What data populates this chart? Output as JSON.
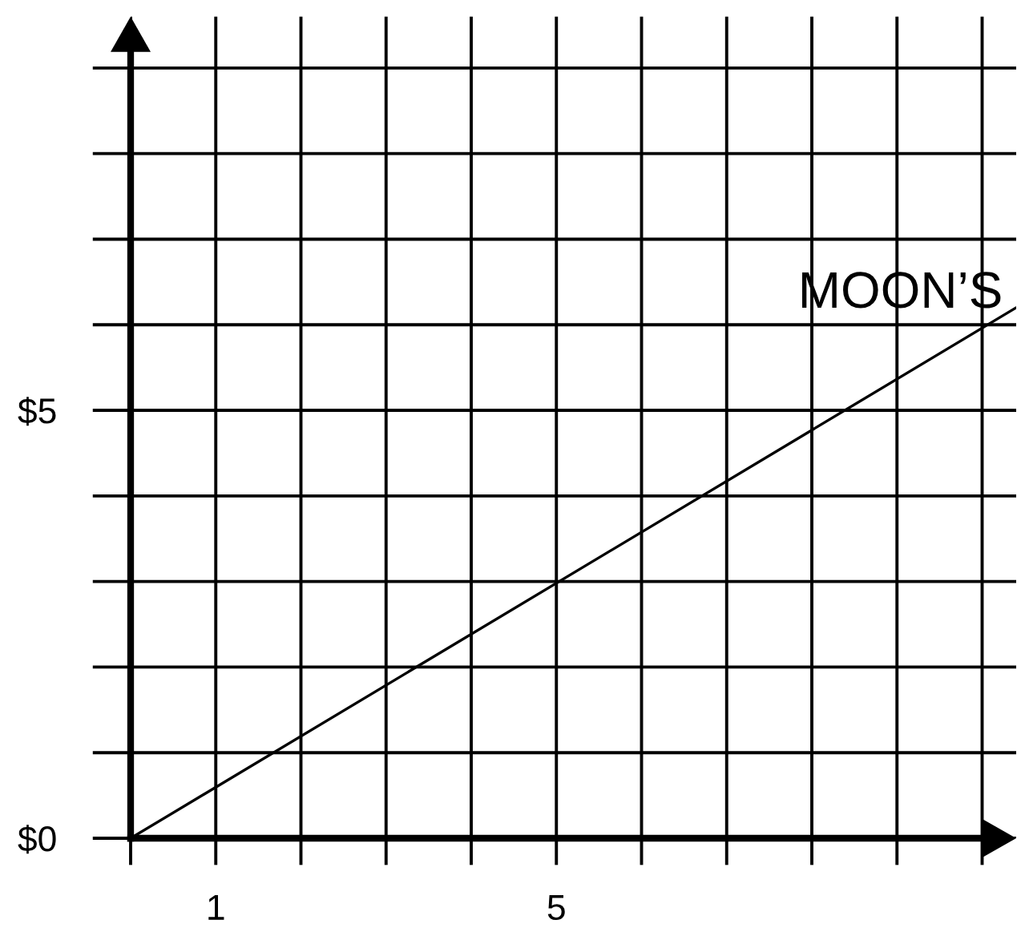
{
  "chart_data": {
    "type": "line",
    "series": [
      {
        "name": "MOON’S",
        "color": "#000000",
        "x": [
          0,
          10.4
        ],
        "values": [
          0,
          6.2
        ]
      }
    ],
    "xlim": [
      0,
      10.4
    ],
    "ylim": [
      0,
      9.6
    ],
    "xticks": [
      {
        "value": 0,
        "label": null
      },
      1,
      {
        "value": 2,
        "label": null
      },
      {
        "value": 3,
        "label": null
      },
      {
        "value": 4,
        "label": null
      },
      5,
      {
        "value": 6,
        "label": null
      },
      {
        "value": 7,
        "label": null
      },
      {
        "value": 8,
        "label": null
      },
      {
        "value": 9,
        "label": null
      },
      {
        "value": 10,
        "label": null
      }
    ],
    "yticks": [
      {
        "value": 0,
        "label": "$0"
      },
      {
        "value": 1,
        "label": null
      },
      {
        "value": 2,
        "label": null
      },
      {
        "value": 3,
        "label": null
      },
      {
        "value": 4,
        "label": null
      },
      {
        "value": 5,
        "label": "$5"
      },
      {
        "value": 6,
        "label": null
      },
      {
        "value": 7,
        "label": null
      },
      {
        "value": 8,
        "label": null
      },
      {
        "value": 9,
        "label": null
      }
    ],
    "grid": true
  }
}
